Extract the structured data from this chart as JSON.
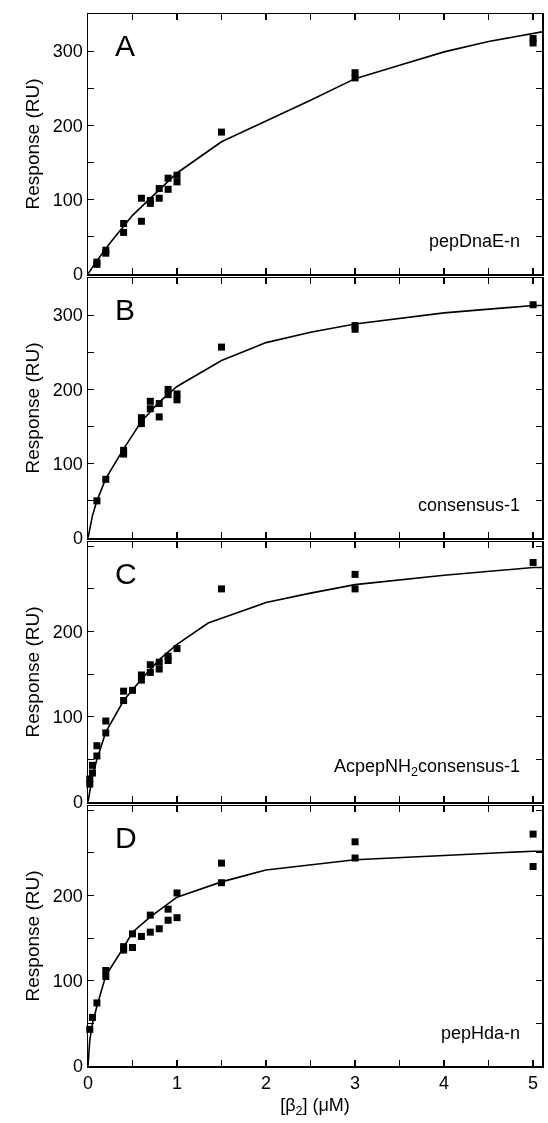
{
  "chart_data": [
    {
      "type": "scatter",
      "ylabel": "Response (RU)",
      "annotations": [
        "A",
        "pepDnaE-n"
      ],
      "xlim": [
        0,
        5.1
      ],
      "ylim": [
        0,
        350
      ],
      "tick_labels": "y",
      "xticks": [
        0,
        {
          "value": 0.5,
          "label": null
        },
        1,
        {
          "value": 1.5,
          "label": null
        },
        2,
        {
          "value": 2.5,
          "label": null
        },
        3,
        {
          "value": 3.5,
          "label": null
        },
        4,
        {
          "value": 4.5,
          "label": null
        },
        5
      ],
      "yticks": [
        0,
        {
          "value": 50,
          "label": null
        },
        100,
        {
          "value": 150,
          "label": null
        },
        200,
        {
          "value": 250,
          "label": null
        },
        300
      ],
      "series": [
        {
          "type": "scatter",
          "marker": "square",
          "color": "#000000",
          "x": [
            0.1,
            0.1,
            0.2,
            0.2,
            0.4,
            0.4,
            0.6,
            0.6,
            0.7,
            0.7,
            0.8,
            0.8,
            0.9,
            0.9,
            1.0,
            1.0,
            1.5,
            3,
            3,
            5,
            5
          ],
          "values": [
            16,
            13,
            32,
            28,
            68,
            56,
            102,
            71,
            99,
            95,
            115,
            102,
            129,
            114,
            133,
            124,
            191,
            271,
            264,
            317,
            311
          ]
        },
        {
          "type": "line",
          "marker": "none",
          "color": "#000000",
          "x": [
            0,
            0.1,
            0.25,
            0.5,
            1.0,
            1.5,
            2,
            2.5,
            3,
            3.5,
            4,
            4.5,
            5.1
          ],
          "values": [
            0,
            18,
            42,
            79,
            136,
            178,
            206,
            234,
            263,
            281,
            299,
            313,
            326
          ]
        }
      ]
    },
    {
      "type": "scatter",
      "ylabel": "Response (RU)",
      "annotations": [
        "B",
        "consensus-1"
      ],
      "xlim": [
        0,
        5.1
      ],
      "ylim": [
        0,
        350
      ],
      "tick_labels": "y",
      "xticks": [
        0,
        {
          "value": 0.5,
          "label": null
        },
        1,
        {
          "value": 1.5,
          "label": null
        },
        2,
        {
          "value": 2.5,
          "label": null
        },
        3,
        {
          "value": 3.5,
          "label": null
        },
        4,
        {
          "value": 4.5,
          "label": null
        },
        5
      ],
      "yticks": [
        0,
        {
          "value": 50,
          "label": null
        },
        100,
        {
          "value": 150,
          "label": null
        },
        200,
        {
          "value": 250,
          "label": null
        },
        300
      ],
      "series": [
        {
          "type": "scatter",
          "marker": "square",
          "color": "#000000",
          "x": [
            0.1,
            0.2,
            0.4,
            0.4,
            0.6,
            0.6,
            0.7,
            0.7,
            0.8,
            0.8,
            0.9,
            0.9,
            1.0,
            1.0,
            1.5,
            3,
            3,
            5
          ],
          "values": [
            50,
            79,
            118,
            113,
            162,
            154,
            184,
            174,
            181,
            163,
            200,
            193,
            194,
            186,
            257,
            286,
            281,
            314
          ]
        },
        {
          "type": "line",
          "marker": "none",
          "color": "#000000",
          "x": [
            0,
            0.05,
            0.1,
            0.2,
            0.4,
            0.6,
            0.8,
            1.0,
            1.5,
            2,
            2.5,
            3,
            4,
            5,
            5.1
          ],
          "values": [
            0,
            30,
            50,
            80,
            120,
            157,
            183,
            204,
            239,
            263,
            277,
            288,
            303,
            313,
            313
          ]
        }
      ]
    },
    {
      "type": "scatter",
      "ylabel": "Response (RU)",
      "annotations": [
        "C",
        "AcpepNH$_{2}$consensus-1"
      ],
      "xlim": [
        0,
        5.1
      ],
      "ylim": [
        0,
        305
      ],
      "tick_labels": "y",
      "xticks": [
        0,
        {
          "value": 0.5,
          "label": null
        },
        1,
        {
          "value": 1.5,
          "label": null
        },
        2,
        {
          "value": 2.5,
          "label": null
        },
        3,
        {
          "value": 3.5,
          "label": null
        },
        4,
        {
          "value": 4.5,
          "label": null
        },
        5
      ],
      "yticks": [
        0,
        {
          "value": 50,
          "label": null
        },
        100,
        {
          "value": 150,
          "label": null
        },
        200,
        {
          "value": 250,
          "label": null
        },
        {
          "value": 300,
          "label": null
        }
      ],
      "series": [
        {
          "type": "scatter",
          "marker": "square",
          "color": "#000000",
          "x": [
            0.02,
            0.02,
            0.05,
            0.05,
            0.1,
            0.1,
            0.2,
            0.2,
            0.4,
            0.4,
            0.5,
            0.6,
            0.6,
            0.7,
            0.7,
            0.8,
            0.8,
            0.9,
            0.9,
            1.0,
            1.5,
            3,
            3,
            5
          ],
          "values": [
            27,
            21,
            43,
            34,
            66,
            54,
            95,
            81,
            130,
            119,
            131,
            149,
            143,
            161,
            152,
            164,
            156,
            171,
            166,
            180,
            250,
            267,
            250,
            281
          ]
        },
        {
          "type": "line",
          "marker": "none",
          "color": "#000000",
          "x": [
            0,
            0.05,
            0.1,
            0.2,
            0.4,
            0.6,
            0.8,
            1.0,
            1.35,
            2,
            2.5,
            3,
            4,
            5,
            5.1
          ],
          "values": [
            0,
            30,
            50,
            82,
            119,
            144,
            167,
            185,
            210,
            234,
            245,
            255,
            266,
            275,
            275
          ]
        }
      ]
    },
    {
      "type": "scatter",
      "xlabel": "[β$_{2}$] (μM)",
      "ylabel": "Response (RU)",
      "annotations": [
        "D",
        "pepHda-n"
      ],
      "xlim": [
        0,
        5.1
      ],
      "ylim": [
        0,
        305
      ],
      "xticks": [
        0,
        {
          "value": 0.5,
          "label": null
        },
        1,
        {
          "value": 1.5,
          "label": null
        },
        2,
        {
          "value": 2.5,
          "label": null
        },
        3,
        {
          "value": 3.5,
          "label": null
        },
        4,
        {
          "value": 4.5,
          "label": null
        },
        5
      ],
      "yticks": [
        0,
        {
          "value": 50,
          "label": null
        },
        100,
        {
          "value": 150,
          "label": null
        },
        200,
        {
          "value": 250,
          "label": null
        },
        {
          "value": 300,
          "label": null
        }
      ],
      "series": [
        {
          "type": "scatter",
          "marker": "square",
          "color": "#000000",
          "x": [
            0.02,
            0.05,
            0.1,
            0.2,
            0.2,
            0.4,
            0.4,
            0.5,
            0.5,
            0.6,
            0.7,
            0.7,
            0.8,
            0.9,
            0.9,
            1.0,
            1.0,
            1.5,
            1.5,
            3,
            3,
            5,
            5
          ],
          "values": [
            43,
            57,
            74,
            112,
            105,
            140,
            136,
            155,
            139,
            152,
            177,
            157,
            161,
            184,
            171,
            203,
            174,
            238,
            215,
            263,
            244,
            272,
            234
          ]
        },
        {
          "type": "line",
          "marker": "none",
          "color": "#000000",
          "x": [
            0,
            0.02,
            0.05,
            0.1,
            0.2,
            0.4,
            0.5,
            0.7,
            1.0,
            1.5,
            2,
            3,
            4,
            5,
            5.1
          ],
          "values": [
            0,
            30,
            50,
            70,
            106,
            139,
            157,
            175,
            198,
            216,
            230,
            242,
            247,
            252,
            252
          ]
        }
      ]
    }
  ]
}
